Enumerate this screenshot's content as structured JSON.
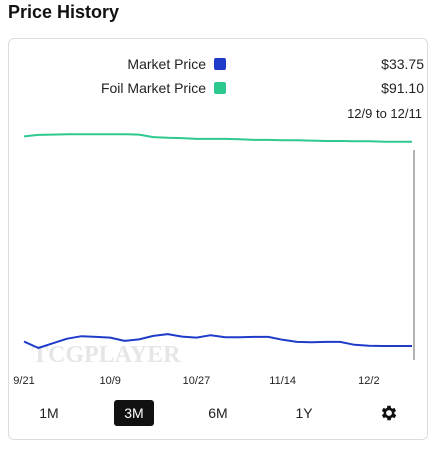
{
  "page_title": "Price History",
  "legend": [
    {
      "name": "Market Price",
      "color": "#1f3cc9",
      "value": "$33.75"
    },
    {
      "name": "Foil Market Price",
      "color": "#2ec98e",
      "value": "$91.10"
    }
  ],
  "range_label": "12/9 to 12/11",
  "watermark": "TCGPLAYER",
  "time_ranges": [
    "1M",
    "3M",
    "6M",
    "1Y"
  ],
  "active_range": "3M",
  "settings_icon": "gear-icon",
  "chart_data": {
    "type": "line",
    "x": [
      "9/21",
      "9/24",
      "9/27",
      "9/30",
      "10/3",
      "10/6",
      "10/9",
      "10/12",
      "10/15",
      "10/18",
      "10/21",
      "10/24",
      "10/27",
      "10/30",
      "11/2",
      "11/5",
      "11/8",
      "11/11",
      "11/14",
      "11/17",
      "11/20",
      "11/23",
      "11/26",
      "11/29",
      "12/2",
      "12/5",
      "12/8",
      "12/11"
    ],
    "x_ticks": [
      "9/21",
      "10/9",
      "10/27",
      "11/14",
      "12/2"
    ],
    "series": [
      {
        "name": "Market Price",
        "color": "#1f3cc9",
        "values": [
          35.0,
          33.2,
          34.5,
          35.8,
          36.5,
          36.3,
          36.1,
          35.2,
          35.6,
          36.6,
          37.1,
          36.4,
          36.1,
          36.8,
          36.2,
          36.2,
          36.3,
          36.3,
          35.5,
          34.9,
          34.8,
          34.9,
          34.9,
          34.1,
          33.8,
          33.75,
          33.75,
          33.75
        ]
      },
      {
        "name": "Foil Market Price",
        "color": "#2ec98e",
        "values": [
          92.6,
          93.0,
          93.1,
          93.2,
          93.2,
          93.2,
          93.2,
          93.2,
          93.1,
          92.4,
          92.2,
          92.1,
          91.9,
          91.9,
          91.9,
          91.8,
          91.6,
          91.6,
          91.5,
          91.5,
          91.4,
          91.3,
          91.3,
          91.2,
          91.2,
          91.1,
          91.1,
          91.1
        ]
      }
    ],
    "ylim": [
      20,
      100
    ],
    "grid": false,
    "legend_position": "top-right"
  }
}
